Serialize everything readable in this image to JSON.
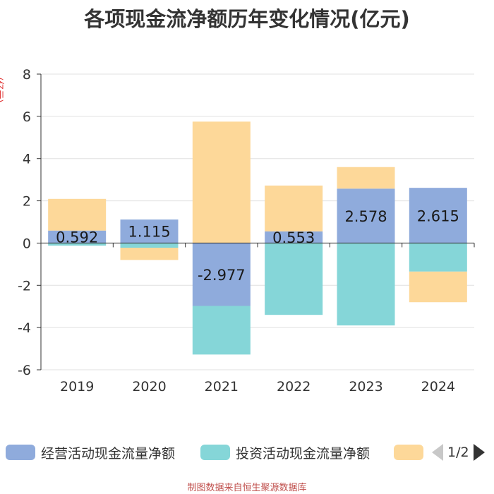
{
  "chart_data": {
    "type": "bar",
    "stacked": true,
    "title": "各项现金流净额历年变化情况(亿元)",
    "ylabel": "(亿元)",
    "categories": [
      "2019",
      "2020",
      "2021",
      "2022",
      "2023",
      "2024"
    ],
    "ylim": [
      -6,
      8
    ],
    "yticks": [
      -6,
      -4,
      -2,
      0,
      2,
      4,
      6,
      8
    ],
    "series": [
      {
        "name": "经营活动现金流量净额",
        "color": "#8fabdc",
        "values": [
          0.592,
          1.115,
          -2.977,
          0.553,
          2.578,
          2.615
        ],
        "labels": [
          "0.592",
          "1.115",
          "-2.977",
          "0.553",
          "2.578",
          "2.615"
        ]
      },
      {
        "name": "投资活动现金流量净额",
        "color": "#85d6d8",
        "values": [
          -0.12,
          -0.22,
          -2.3,
          -3.4,
          -3.9,
          -1.35
        ]
      },
      {
        "name": "筹资活动现金流量净额",
        "color": "#fdd899",
        "values": [
          1.5,
          -0.58,
          5.75,
          2.17,
          1.02,
          -1.45
        ]
      }
    ]
  },
  "legend": {
    "items": [
      {
        "label": "经营活动现金流量净额",
        "color": "#8fabdc"
      },
      {
        "label": "投资活动现金流量净额",
        "color": "#85d6d8"
      },
      {
        "label": "",
        "color": "#fdd899"
      }
    ],
    "pager": "1/2"
  },
  "footer": "制图数据来自恒生聚源数据库"
}
